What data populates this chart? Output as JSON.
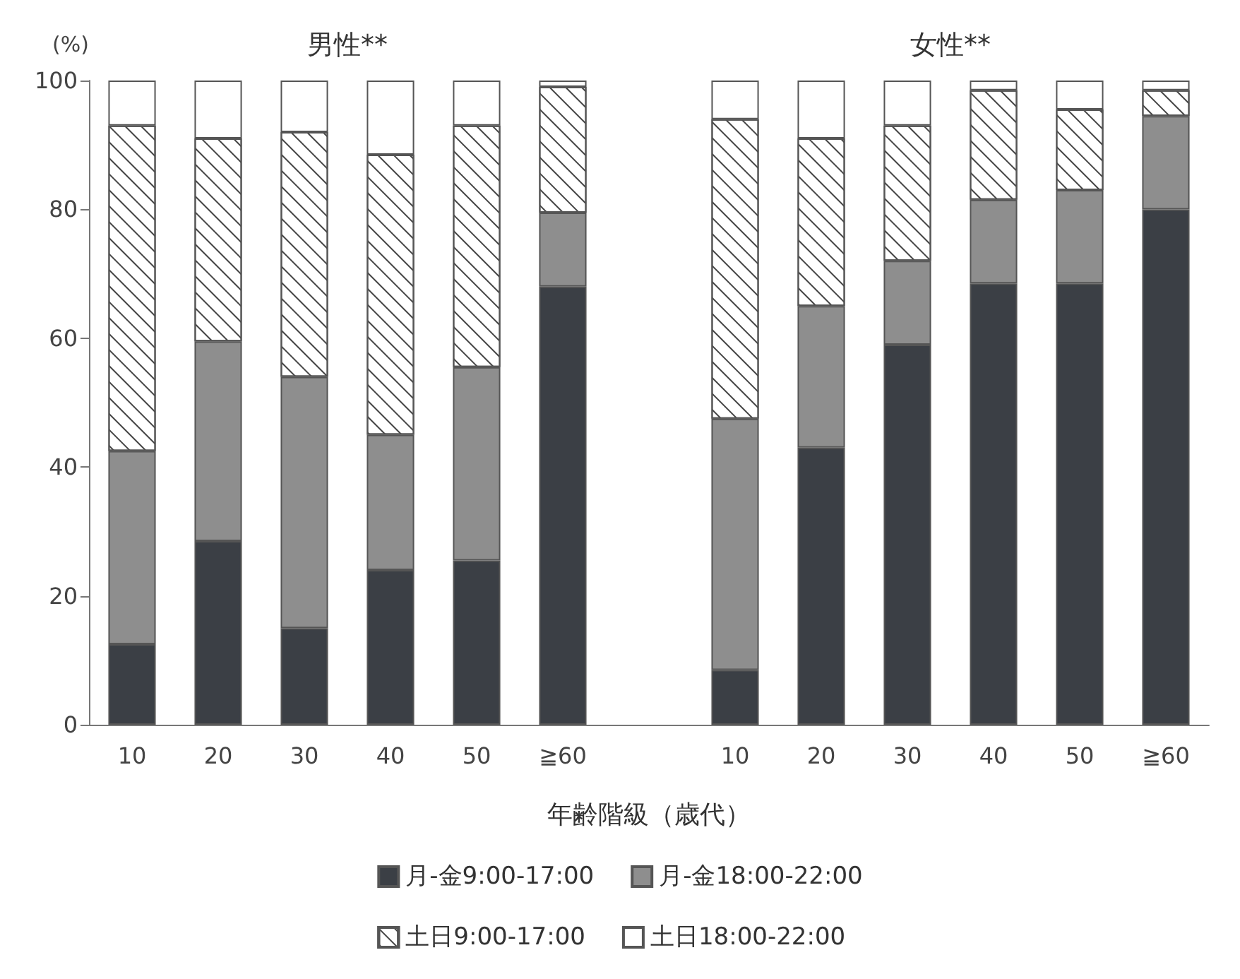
{
  "chart_data": {
    "type": "bar",
    "stacked": true,
    "annotations": [
      "男性**",
      "女性**"
    ],
    "ylabel": "(%)",
    "xlabel": "年齢階級（歳代）",
    "categories": [
      "10",
      "20",
      "30",
      "40",
      "50",
      "≧60",
      null,
      "10",
      "20",
      "30",
      "40",
      "50",
      "≧60"
    ],
    "ylim": [
      0,
      100
    ],
    "yticks": [
      0,
      20,
      40,
      60,
      80,
      100
    ],
    "legend": "bottom",
    "grid": false,
    "series": [
      {
        "name": "月-金9:00-17:00",
        "color": "#3b3f45",
        "values": [
          12.5,
          28.5,
          15,
          24,
          25.5,
          68,
          null,
          8.5,
          43,
          59,
          68.5,
          68.5,
          80
        ]
      },
      {
        "name": "月-金18:00-22:00",
        "color": "#8e8e8e",
        "values": [
          30,
          31,
          39,
          21,
          30,
          11.5,
          null,
          39,
          22,
          13,
          13,
          14.5,
          14.5
        ]
      },
      {
        "name": "土日9:00-17:00",
        "color": "#ffffff",
        "values": [
          50.5,
          31.5,
          38,
          43.5,
          37.5,
          19.5,
          null,
          46.5,
          26,
          21,
          17,
          12.5,
          4
        ]
      },
      {
        "name": "土日18:00-22:00",
        "color": "#ffffff",
        "values": [
          7,
          9,
          8,
          11.5,
          7,
          1,
          null,
          6,
          9,
          7,
          1.5,
          4.5,
          1.5
        ]
      }
    ]
  }
}
